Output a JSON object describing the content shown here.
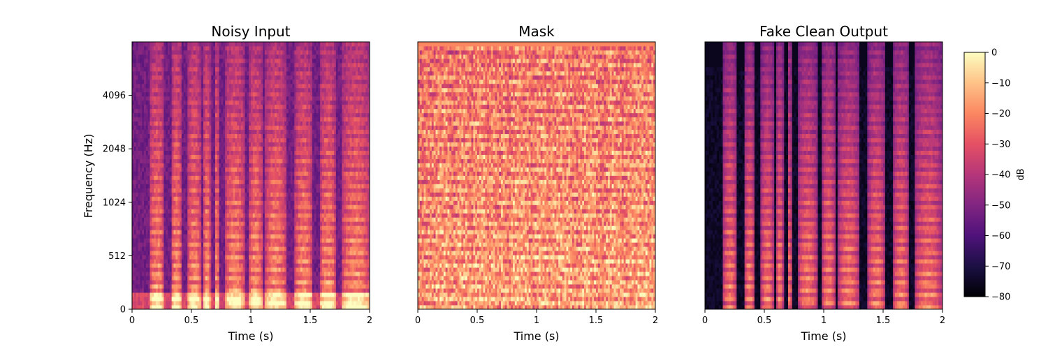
{
  "chart_data": [
    {
      "type": "heatmap",
      "title": "Noisy Input",
      "xlabel": "Time (s)",
      "ylabel": "Frequency (Hz)",
      "xlim": [
        0,
        2
      ],
      "x_ticks": [
        0,
        0.5,
        1,
        1.5,
        2
      ],
      "x_tick_labels": [
        "0",
        "0.5",
        "1",
        "1.5",
        "2"
      ],
      "y_scale": "log2 (symlog)",
      "y_ticks": [
        0,
        512,
        1024,
        2048,
        4096
      ],
      "y_tick_labels": [
        "0",
        "512",
        "1024",
        "2048",
        "4096"
      ],
      "colormap": "magma",
      "z_units": "dB",
      "zlim": [
        -80,
        0
      ]
    },
    {
      "type": "heatmap",
      "title": "Mask",
      "xlabel": "Time (s)",
      "xlim": [
        0,
        2
      ],
      "x_ticks": [
        0,
        0.5,
        1,
        1.5,
        2
      ],
      "x_tick_labels": [
        "0",
        "0.5",
        "1",
        "1.5",
        "2"
      ],
      "colormap": "magma",
      "z_units": "dB",
      "zlim": [
        -80,
        0
      ]
    },
    {
      "type": "heatmap",
      "title": "Fake Clean Output",
      "xlabel": "Time (s)",
      "xlim": [
        0,
        2
      ],
      "x_ticks": [
        0,
        0.5,
        1,
        1.5,
        2
      ],
      "x_tick_labels": [
        "0",
        "0.5",
        "1",
        "1.5",
        "2"
      ],
      "colormap": "magma",
      "z_units": "dB",
      "zlim": [
        -80,
        0
      ]
    }
  ],
  "colorbar": {
    "label": "dB",
    "ticks": [
      0,
      -10,
      -20,
      -30,
      -40,
      -50,
      -60,
      -70,
      -80
    ],
    "tick_labels": [
      "0",
      "−10",
      "−20",
      "−30",
      "−40",
      "−50",
      "−60",
      "−70",
      "−80"
    ],
    "range": [
      -80,
      0
    ],
    "colormap": "magma"
  },
  "colormap_stops": [
    "#000004",
    "#1c1044",
    "#4f127b",
    "#812581",
    "#b5367a",
    "#e55064",
    "#fb8761",
    "#fec287",
    "#fcfdbf"
  ]
}
